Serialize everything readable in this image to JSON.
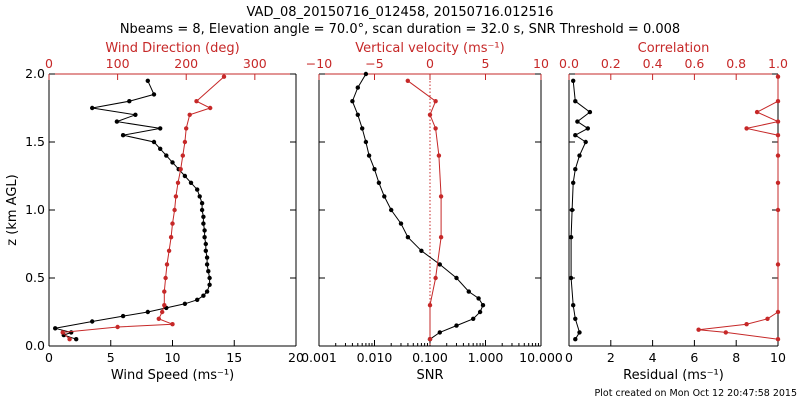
{
  "title": {
    "line1": "VAD_08_20150716_012458, 20150716.012516",
    "line2": "Nbeams = 8, Elevation angle = 70.0°, scan duration = 32.0 s, SNR Threshold = 0.008"
  },
  "footer": "Plot created on Mon Oct 12 20:47:58 2015",
  "colors": {
    "black": "#000000",
    "red": "#c62828"
  },
  "chart_data": [
    {
      "type": "line",
      "panel": "wind",
      "ylabel": "z (km AGL)",
      "ylim": [
        0,
        2.0
      ],
      "yticks": [
        "0.0",
        "0.5",
        "1.0",
        "1.5",
        "2.0"
      ],
      "xlabel_bottom": "Wind Speed (ms⁻¹)",
      "xlim_bottom": [
        0,
        20
      ],
      "xticks_bottom": [
        "0",
        "5",
        "10",
        "15",
        "20"
      ],
      "xlabel_top": "Wind Direction (deg)",
      "xlim_top": [
        0,
        360
      ],
      "xticks_top": [
        "0",
        "100",
        "200",
        "300"
      ],
      "series": [
        {
          "axis": "bottom",
          "color": "#000000",
          "points": [
            [
              2.2,
              0.05
            ],
            [
              1.2,
              0.08
            ],
            [
              1.8,
              0.1
            ],
            [
              0.5,
              0.13
            ],
            [
              3.5,
              0.18
            ],
            [
              6,
              0.22
            ],
            [
              8,
              0.25
            ],
            [
              9.5,
              0.28
            ],
            [
              11,
              0.31
            ],
            [
              12,
              0.34
            ],
            [
              12.5,
              0.37
            ],
            [
              12.8,
              0.4
            ],
            [
              13,
              0.45
            ],
            [
              13,
              0.5
            ],
            [
              12.9,
              0.55
            ],
            [
              12.8,
              0.6
            ],
            [
              12.8,
              0.65
            ],
            [
              12.7,
              0.7
            ],
            [
              12.7,
              0.75
            ],
            [
              12.6,
              0.8
            ],
            [
              12.6,
              0.85
            ],
            [
              12.5,
              0.9
            ],
            [
              12.5,
              0.95
            ],
            [
              12.4,
              1.0
            ],
            [
              12.4,
              1.05
            ],
            [
              12.2,
              1.1
            ],
            [
              12,
              1.15
            ],
            [
              11.5,
              1.2
            ],
            [
              11,
              1.25
            ],
            [
              10.5,
              1.3
            ],
            [
              10,
              1.35
            ],
            [
              9.5,
              1.4
            ],
            [
              9,
              1.45
            ],
            [
              8.5,
              1.5
            ],
            [
              6,
              1.55
            ],
            [
              9,
              1.6
            ],
            [
              5.5,
              1.65
            ],
            [
              7,
              1.7
            ],
            [
              3.5,
              1.75
            ],
            [
              6.5,
              1.8
            ],
            [
              8.5,
              1.85
            ],
            [
              8,
              1.95
            ]
          ]
        },
        {
          "axis": "top",
          "color": "#c62828",
          "points": [
            [
              30,
              0.05
            ],
            [
              20,
              0.1
            ],
            [
              100,
              0.14
            ],
            [
              180,
              0.16
            ],
            [
              160,
              0.2
            ],
            [
              165,
              0.25
            ],
            [
              168,
              0.3
            ],
            [
              168,
              0.4
            ],
            [
              170,
              0.5
            ],
            [
              172,
              0.6
            ],
            [
              175,
              0.7
            ],
            [
              178,
              0.8
            ],
            [
              180,
              0.9
            ],
            [
              183,
              1.0
            ],
            [
              185,
              1.1
            ],
            [
              188,
              1.2
            ],
            [
              192,
              1.3
            ],
            [
              195,
              1.4
            ],
            [
              198,
              1.5
            ],
            [
              200,
              1.6
            ],
            [
              205,
              1.7
            ],
            [
              235,
              1.75
            ],
            [
              215,
              1.8
            ],
            [
              255,
              1.98
            ]
          ]
        }
      ]
    },
    {
      "type": "line",
      "panel": "vertical-velocity-snr",
      "ylim": [
        0,
        2.0
      ],
      "xlabel_bottom": "SNR",
      "xscale_bottom": "log",
      "xlim_bottom": [
        0.001,
        10
      ],
      "xticks_bottom": [
        "0.001",
        "0.010",
        "0.100",
        "1.000",
        "10.000"
      ],
      "xlabel_top": "Vertical velocity (ms⁻¹)",
      "xlim_top": [
        -10,
        10
      ],
      "xticks_top": [
        "−10",
        "−5",
        "0",
        "5",
        "10"
      ],
      "reference_line": {
        "axis": "top",
        "value": 0
      },
      "series": [
        {
          "axis": "bottom",
          "color": "#000000",
          "points": [
            [
              0.1,
              0.05
            ],
            [
              0.15,
              0.1
            ],
            [
              0.3,
              0.15
            ],
            [
              0.6,
              0.2
            ],
            [
              0.8,
              0.25
            ],
            [
              0.9,
              0.3
            ],
            [
              0.75,
              0.35
            ],
            [
              0.5,
              0.4
            ],
            [
              0.3,
              0.5
            ],
            [
              0.15,
              0.6
            ],
            [
              0.07,
              0.7
            ],
            [
              0.04,
              0.8
            ],
            [
              0.03,
              0.9
            ],
            [
              0.02,
              1.0
            ],
            [
              0.015,
              1.1
            ],
            [
              0.012,
              1.2
            ],
            [
              0.01,
              1.3
            ],
            [
              0.008,
              1.4
            ],
            [
              0.007,
              1.5
            ],
            [
              0.006,
              1.6
            ],
            [
              0.005,
              1.7
            ],
            [
              0.004,
              1.8
            ],
            [
              0.005,
              1.9
            ],
            [
              0.007,
              2.0
            ]
          ]
        },
        {
          "axis": "top",
          "color": "#c62828",
          "points": [
            [
              0,
              0.05
            ],
            [
              0,
              0.3
            ],
            [
              0.5,
              0.5
            ],
            [
              1,
              0.8
            ],
            [
              1,
              1.1
            ],
            [
              0.8,
              1.4
            ],
            [
              0.5,
              1.6
            ],
            [
              0,
              1.7
            ],
            [
              0.5,
              1.8
            ],
            [
              -2,
              1.95
            ]
          ]
        }
      ]
    },
    {
      "type": "line",
      "panel": "residual-correlation",
      "ylim": [
        0,
        2.0
      ],
      "xlabel_bottom": "Residual (ms⁻¹)",
      "xlim_bottom": [
        0,
        10
      ],
      "xticks_bottom": [
        "0",
        "2",
        "4",
        "6",
        "8",
        "10"
      ],
      "xlabel_top": "Correlation",
      "xlim_top": [
        0,
        1.0
      ],
      "xticks_top": [
        "0.0",
        "0.2",
        "0.4",
        "0.6",
        "0.8",
        "1.0"
      ],
      "series": [
        {
          "axis": "bottom",
          "color": "#000000",
          "points": [
            [
              0.3,
              0.05
            ],
            [
              0.5,
              0.1
            ],
            [
              0.3,
              0.2
            ],
            [
              0.2,
              0.3
            ],
            [
              0.1,
              0.5
            ],
            [
              0.1,
              0.8
            ],
            [
              0.15,
              1.0
            ],
            [
              0.2,
              1.2
            ],
            [
              0.3,
              1.3
            ],
            [
              0.5,
              1.4
            ],
            [
              0.8,
              1.5
            ],
            [
              0.3,
              1.55
            ],
            [
              0.9,
              1.6
            ],
            [
              0.4,
              1.65
            ],
            [
              1.0,
              1.72
            ],
            [
              0.3,
              1.8
            ],
            [
              0.2,
              1.95
            ]
          ]
        },
        {
          "axis": "top",
          "color": "#c62828",
          "points": [
            [
              1.0,
              0.05
            ],
            [
              0.75,
              0.1
            ],
            [
              0.62,
              0.12
            ],
            [
              0.85,
              0.16
            ],
            [
              0.95,
              0.2
            ],
            [
              1.0,
              0.25
            ],
            [
              1.0,
              0.6
            ],
            [
              1.0,
              1.0
            ],
            [
              1.0,
              1.2
            ],
            [
              1.0,
              1.4
            ],
            [
              1.0,
              1.55
            ],
            [
              0.85,
              1.6
            ],
            [
              1.0,
              1.65
            ],
            [
              0.9,
              1.72
            ],
            [
              1.0,
              1.8
            ],
            [
              1.0,
              1.98
            ]
          ]
        }
      ]
    }
  ]
}
